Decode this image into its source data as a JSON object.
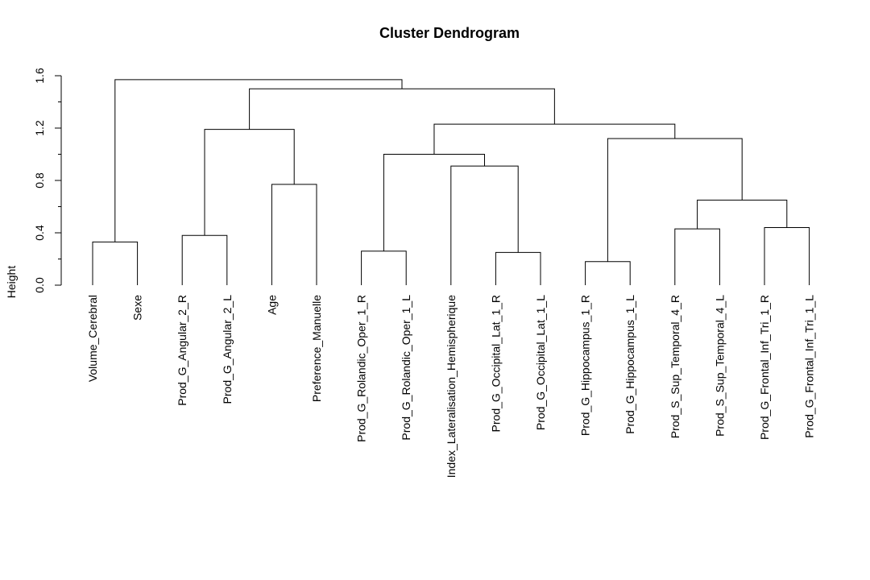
{
  "chart_data": {
    "type": "dendrogram",
    "title": "Cluster Dendrogram",
    "ylabel": "Height",
    "xlabel": "",
    "ylim": [
      0,
      1.6
    ],
    "yticks": [
      0.0,
      0.4,
      0.8,
      1.2,
      1.6
    ],
    "ytick_labels": [
      "0.0",
      "0.4",
      "0.8",
      "1.2",
      "1.6"
    ],
    "leaves": [
      "Volume_Cerebral",
      "Sexe",
      "Prod_G_Angular_2_R",
      "Prod_G_Angular_2_L",
      "Age",
      "Preference_Manuelle",
      "Prod_G_Rolandic_Oper_1_R",
      "Prod_G_Rolandic_Oper_1_L",
      "Index_Lateralisation_Hemispherique",
      "Prod_G_Occipital_Lat_1_R",
      "Prod_G_Occipital_Lat_1_L",
      "Prod_G_Hippocampus_1_R",
      "Prod_G_Hippocampus_1_L",
      "Prod_S_Sup_Temporal_4_R",
      "Prod_S_Sup_Temporal_4_L",
      "Prod_G_Frontal_Inf_Tri_1_R",
      "Prod_G_Frontal_Inf_Tri_1_L"
    ],
    "merges": [
      {
        "left": "leaf:1",
        "right": "leaf:2",
        "height": 0.33
      },
      {
        "left": "leaf:3",
        "right": "leaf:4",
        "height": 0.38
      },
      {
        "left": "leaf:5",
        "right": "leaf:6",
        "height": 0.77
      },
      {
        "left": "merge:2",
        "right": "merge:3",
        "height": 1.19
      },
      {
        "left": "leaf:7",
        "right": "leaf:8",
        "height": 0.26
      },
      {
        "left": "leaf:10",
        "right": "leaf:11",
        "height": 0.25
      },
      {
        "left": "leaf:9",
        "right": "merge:6",
        "height": 0.91
      },
      {
        "left": "merge:5",
        "right": "merge:7",
        "height": 1.0
      },
      {
        "left": "leaf:12",
        "right": "leaf:13",
        "height": 0.18
      },
      {
        "left": "leaf:14",
        "right": "leaf:15",
        "height": 0.43
      },
      {
        "left": "leaf:16",
        "right": "leaf:17",
        "height": 0.44
      },
      {
        "left": "merge:10",
        "right": "merge:11",
        "height": 0.65
      },
      {
        "left": "merge:9",
        "right": "merge:12",
        "height": 1.12
      },
      {
        "left": "merge:8",
        "right": "merge:13",
        "height": 1.23
      },
      {
        "left": "merge:4",
        "right": "merge:14",
        "height": 1.5
      },
      {
        "left": "merge:1",
        "right": "merge:15",
        "height": 1.57
      }
    ]
  }
}
